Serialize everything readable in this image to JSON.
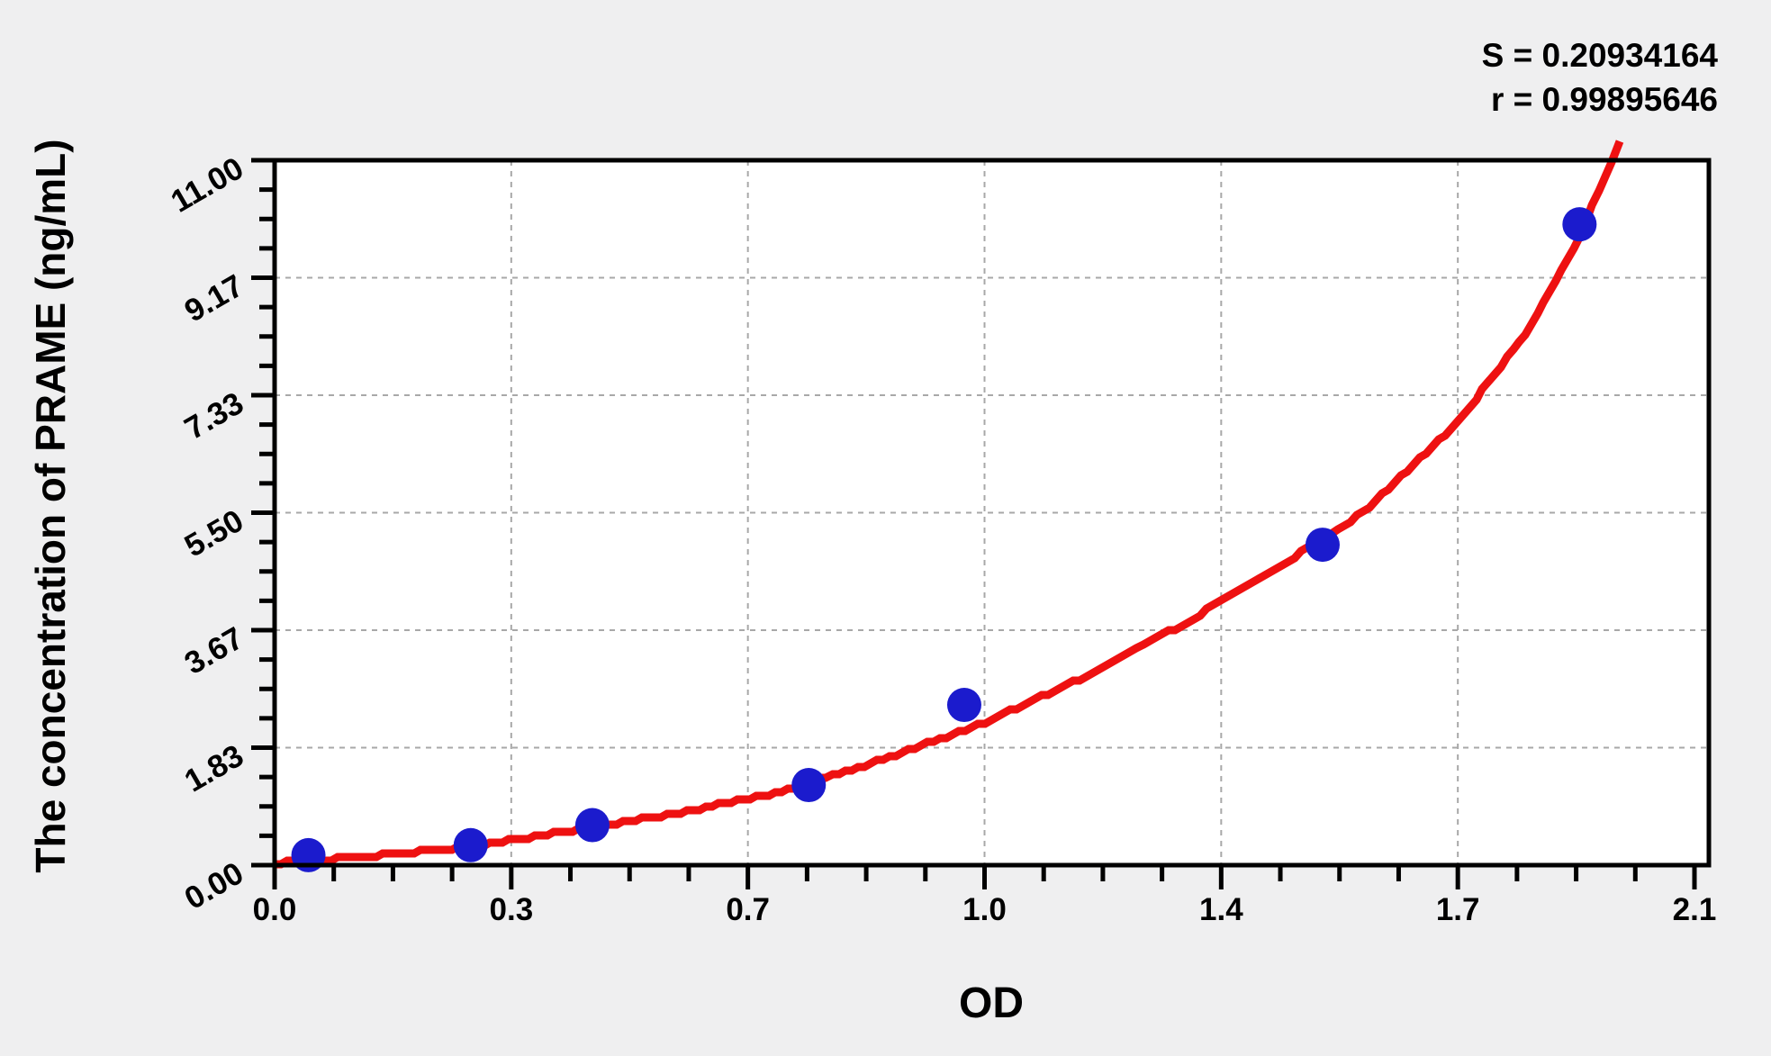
{
  "figure": {
    "background_color": "#efeff0",
    "plot_background_color": "#ffffff",
    "stats": {
      "s_text": "S = 0.20934164",
      "r_text": "r = 0.99895646"
    },
    "x_axis": {
      "title": "OD",
      "tick_labels": [
        "0.0",
        "0.3",
        "0.7",
        "1.0",
        "1.4",
        "1.7",
        "2.1"
      ]
    },
    "y_axis": {
      "title": "The concentration of PRAME (ng/mL)",
      "tick_labels": [
        "0.00",
        "1.83",
        "3.67",
        "5.50",
        "7.33",
        "9.17",
        "11.00"
      ]
    }
  },
  "chart_data": {
    "type": "scatter",
    "title": "",
    "xlabel": "OD",
    "ylabel": "The concentration of PRAME (ng/mL)",
    "xlim": [
      0,
      2.1
    ],
    "ylim": [
      0,
      11
    ],
    "x_major_tick_values": [
      0,
      0.35,
      0.7,
      1.05,
      1.4,
      1.75,
      2.1
    ],
    "y_major_tick_values": [
      0,
      1.8333,
      3.6667,
      5.5,
      7.3333,
      9.1667,
      11
    ],
    "minor_ticks_per_interval": 3,
    "grid": true,
    "legend": "none",
    "stats": {
      "S": 0.20934164,
      "r": 0.99895646
    },
    "points": {
      "name": "standard-points",
      "color": "#1b1bcd",
      "marker": "circle",
      "data": [
        {
          "od": 0.05,
          "conc": 0.156
        },
        {
          "od": 0.29,
          "conc": 0.312
        },
        {
          "od": 0.47,
          "conc": 0.625
        },
        {
          "od": 0.79,
          "conc": 1.25
        },
        {
          "od": 1.02,
          "conc": 2.5
        },
        {
          "od": 1.55,
          "conc": 5.0
        },
        {
          "od": 1.93,
          "conc": 10.0
        }
      ]
    },
    "fit_curve": {
      "color": "#ee1111",
      "samples": [
        [
          0.0,
          0.03
        ],
        [
          0.15,
          0.15
        ],
        [
          0.3,
          0.3
        ],
        [
          0.45,
          0.56
        ],
        [
          0.6,
          0.82
        ],
        [
          0.75,
          1.15
        ],
        [
          0.9,
          1.65
        ],
        [
          1.05,
          2.22
        ],
        [
          1.2,
          2.95
        ],
        [
          1.35,
          3.8
        ],
        [
          1.5,
          4.75
        ],
        [
          1.61,
          5.5
        ],
        [
          1.75,
          6.9
        ],
        [
          1.85,
          8.3
        ],
        [
          1.93,
          9.8
        ],
        [
          1.977,
          11.0
        ],
        [
          1.99,
          11.3
        ]
      ]
    },
    "colors": {
      "axis": "#000000",
      "gridline": "#a8a8a8",
      "curve": "#ee1111",
      "points": "#1b1bcd",
      "text": "#000000"
    }
  }
}
